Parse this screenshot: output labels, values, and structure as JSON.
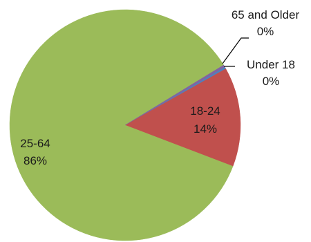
{
  "chart_data": {
    "type": "pie",
    "categories": [
      "Under 18",
      "18-24",
      "25-64",
      "65 and Older"
    ],
    "values": [
      0.3,
      14,
      86,
      0.3
    ],
    "labels": [
      {
        "name": "Under 18",
        "pct": "0%"
      },
      {
        "name": "18-24",
        "pct": "14%"
      },
      {
        "name": "25-64",
        "pct": "86%"
      },
      {
        "name": "65 and Older",
        "pct": "0%"
      }
    ],
    "colors": [
      "#4f81bd",
      "#c0504d",
      "#9bbb59",
      "#8064a2"
    ],
    "legend": "none"
  }
}
